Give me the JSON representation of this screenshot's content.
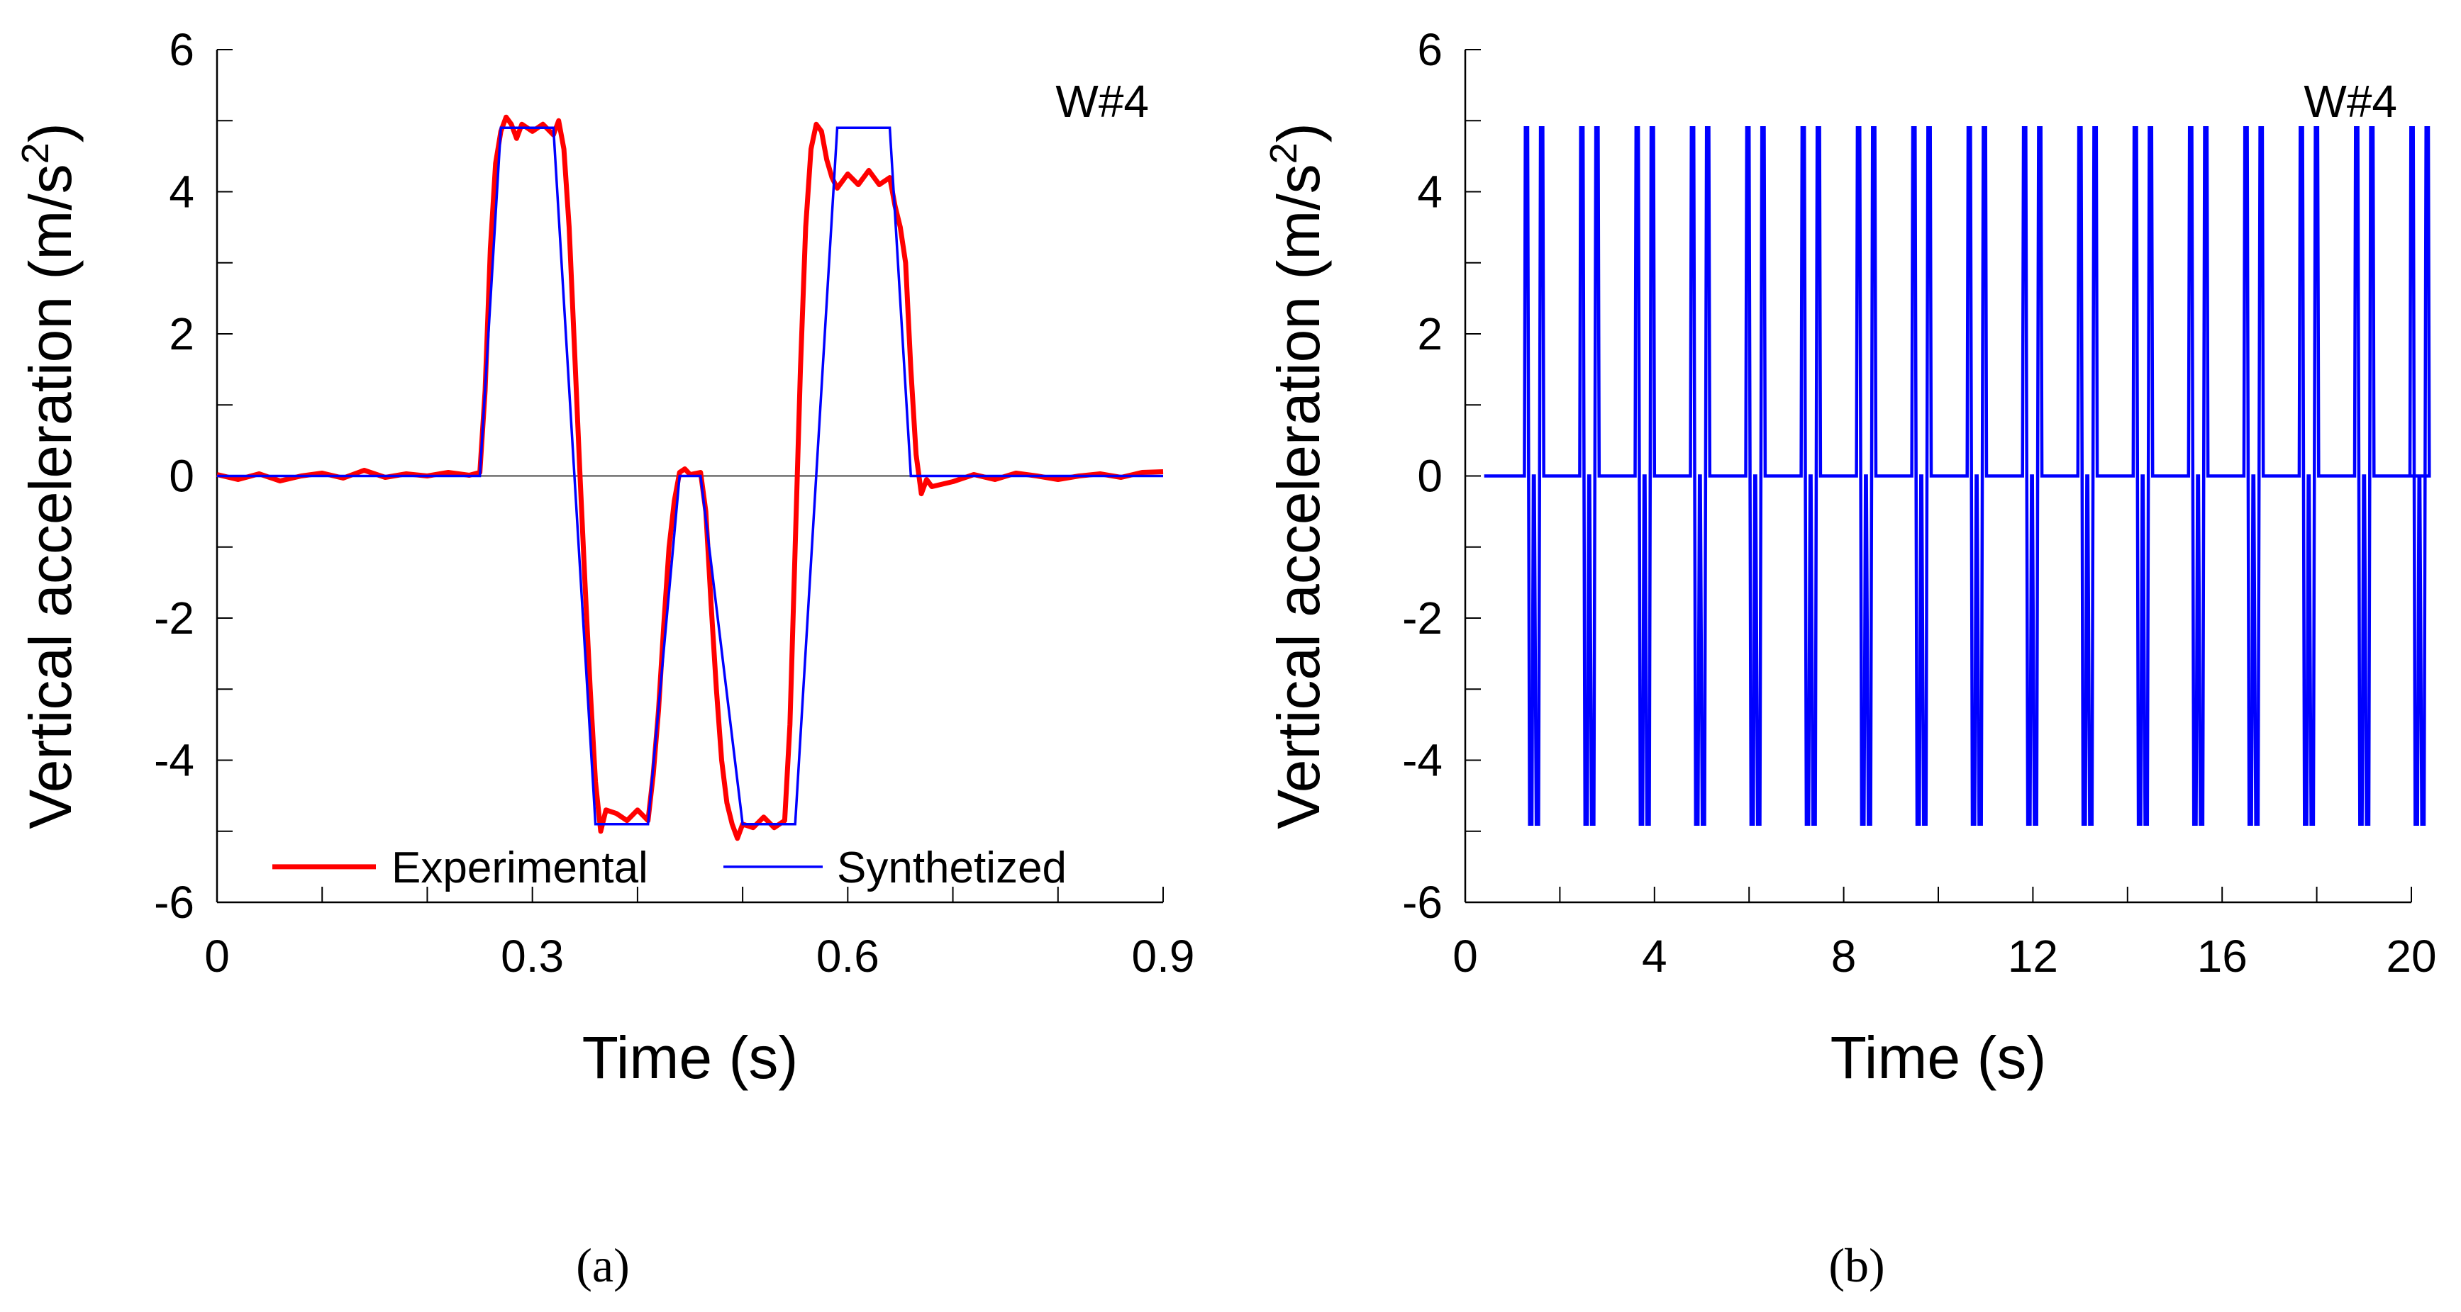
{
  "chart_data": [
    {
      "type": "line",
      "panel_label": "(a)",
      "annotation": "W#4",
      "xlabel": "Time  (s)",
      "ylabel_main": "Vertical acceleration  (m/s",
      "ylabel_sup": "2",
      "ylabel_close": ")",
      "xlim": [
        0,
        0.9
      ],
      "ylim": [
        -6,
        6
      ],
      "x_ticks": [
        0,
        0.3,
        0.6,
        0.9
      ],
      "x_tick_labels": [
        "0",
        "0.3",
        "0.6",
        "0.9"
      ],
      "x_minor_step": 0.1,
      "y_ticks": [
        -6,
        -4,
        -2,
        0,
        2,
        4,
        6
      ],
      "y_tick_labels": [
        "-6",
        "-4",
        "-2",
        "0",
        "2",
        "4",
        "6"
      ],
      "y_minor_step": 1,
      "zero_line": true,
      "legend_position": "bottom-center",
      "series": [
        {
          "name": "Experimental",
          "color": "#ff0000",
          "x": [
            0,
            0.02,
            0.04,
            0.06,
            0.08,
            0.1,
            0.12,
            0.14,
            0.16,
            0.18,
            0.2,
            0.22,
            0.24,
            0.25,
            0.255,
            0.26,
            0.265,
            0.27,
            0.275,
            0.28,
            0.285,
            0.29,
            0.3,
            0.31,
            0.32,
            0.325,
            0.33,
            0.335,
            0.34,
            0.345,
            0.35,
            0.355,
            0.36,
            0.365,
            0.37,
            0.38,
            0.39,
            0.4,
            0.41,
            0.415,
            0.42,
            0.425,
            0.43,
            0.435,
            0.44,
            0.445,
            0.45,
            0.46,
            0.465,
            0.47,
            0.475,
            0.48,
            0.485,
            0.49,
            0.495,
            0.5,
            0.51,
            0.52,
            0.53,
            0.54,
            0.545,
            0.55,
            0.555,
            0.56,
            0.565,
            0.57,
            0.575,
            0.58,
            0.585,
            0.59,
            0.6,
            0.61,
            0.62,
            0.63,
            0.64,
            0.645,
            0.65,
            0.655,
            0.66,
            0.665,
            0.67,
            0.675,
            0.68,
            0.7,
            0.72,
            0.74,
            0.76,
            0.78,
            0.8,
            0.82,
            0.84,
            0.86,
            0.88,
            0.9
          ],
          "y": [
            0.02,
            -0.05,
            0.03,
            -0.07,
            0.0,
            0.04,
            -0.03,
            0.08,
            -0.02,
            0.03,
            0.0,
            0.05,
            0.01,
            0.05,
            1.2,
            3.2,
            4.4,
            4.85,
            5.05,
            4.95,
            4.75,
            4.95,
            4.85,
            4.95,
            4.8,
            5.0,
            4.6,
            3.5,
            1.8,
            0.1,
            -1.5,
            -3.0,
            -4.3,
            -5.0,
            -4.7,
            -4.75,
            -4.85,
            -4.7,
            -4.85,
            -4.2,
            -3.3,
            -2.1,
            -1.0,
            -0.35,
            0.05,
            0.1,
            0.02,
            0.05,
            -0.5,
            -1.8,
            -3.0,
            -4.0,
            -4.6,
            -4.9,
            -5.1,
            -4.9,
            -4.95,
            -4.8,
            -4.95,
            -4.85,
            -3.5,
            -1.0,
            1.5,
            3.5,
            4.6,
            4.95,
            4.85,
            4.45,
            4.2,
            4.05,
            4.25,
            4.1,
            4.3,
            4.1,
            4.2,
            3.8,
            3.5,
            3.0,
            1.5,
            0.3,
            -0.25,
            -0.05,
            -0.15,
            -0.08,
            0.02,
            -0.05,
            0.04,
            0.0,
            -0.05,
            0.0,
            0.03,
            -0.02,
            0.05,
            0.06
          ]
        },
        {
          "name": "Synthetized",
          "color": "#0000ff",
          "x": [
            0,
            0.25,
            0.27,
            0.32,
            0.36,
            0.41,
            0.44,
            0.46,
            0.5,
            0.55,
            0.59,
            0.64,
            0.66,
            0.9
          ],
          "y": [
            0,
            0,
            4.9,
            4.9,
            -4.9,
            -4.9,
            0,
            0,
            -4.9,
            -4.9,
            4.9,
            4.9,
            0,
            0
          ]
        }
      ]
    },
    {
      "type": "line",
      "panel_label": "(b)",
      "annotation": "W#4",
      "xlabel": "Time  (s)",
      "ylabel_main": "Vertical acceleration  (m/s",
      "ylabel_sup": "2",
      "ylabel_close": ")",
      "xlim": [
        0,
        20
      ],
      "ylim": [
        -6,
        6
      ],
      "x_ticks": [
        0,
        4,
        8,
        12,
        16,
        20
      ],
      "x_tick_labels": [
        "0",
        "4",
        "8",
        "12",
        "16",
        "20"
      ],
      "x_minor_step": 2,
      "y_ticks": [
        -6,
        -4,
        -2,
        0,
        2,
        4,
        6
      ],
      "y_tick_labels": [
        "-6",
        "-4",
        "-2",
        "0",
        "2",
        "4",
        "6"
      ],
      "y_minor_step": 1,
      "zero_line": false,
      "series": [
        {
          "color": "#0000ff",
          "signal_start": 0.4,
          "signal_end": 20,
          "pulse_period": 1.17,
          "first_pulse": 1.0,
          "pulse_count": 17,
          "amplitude": 4.9,
          "pulse_shape_t": [
            0,
            0.25,
            0.27,
            0.32,
            0.36,
            0.41,
            0.44,
            0.46,
            0.5,
            0.55,
            0.59,
            0.64,
            0.66
          ],
          "pulse_shape_y": [
            0,
            0,
            4.9,
            4.9,
            -4.9,
            -4.9,
            0,
            0,
            -4.9,
            -4.9,
            4.9,
            4.9,
            0
          ]
        }
      ]
    }
  ]
}
